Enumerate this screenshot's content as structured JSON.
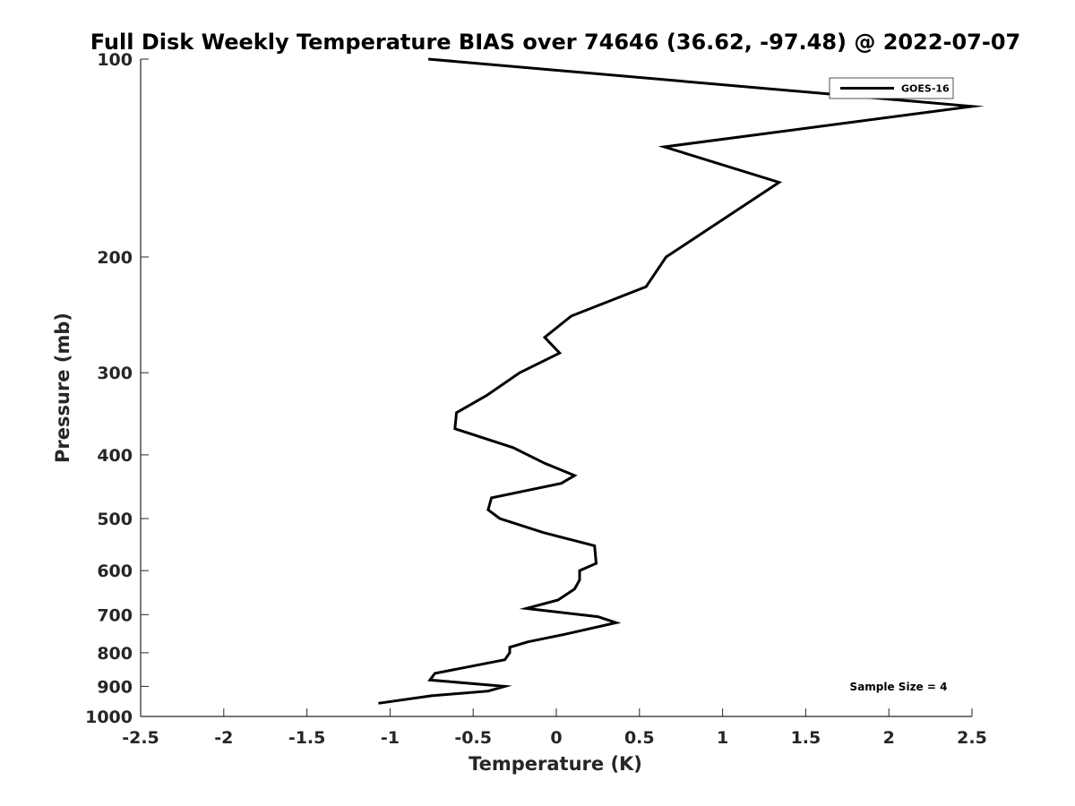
{
  "chart_data": {
    "type": "line",
    "title": "Full Disk Weekly Temperature BIAS over 74646 (36.62, -97.48) @ 2022-07-07",
    "xlabel": "Temperature (K)",
    "ylabel": "Pressure (mb)",
    "xlim": [
      -2.5,
      2.5
    ],
    "ylim": [
      1000,
      100
    ],
    "yscale": "log",
    "x_ticks": [
      -2.5,
      -2,
      -1.5,
      -1,
      -0.5,
      0,
      0.5,
      1,
      1.5,
      2,
      2.5
    ],
    "x_tick_labels": [
      "-2.5",
      "-2",
      "-1.5",
      "-1",
      "-0.5",
      "0",
      "0.5",
      "1",
      "1.5",
      "2",
      "2.5"
    ],
    "y_ticks": [
      100,
      200,
      300,
      400,
      500,
      600,
      700,
      800,
      900,
      1000
    ],
    "y_tick_labels": [
      "100",
      "200",
      "300",
      "400",
      "500",
      "600",
      "700",
      "800",
      "900",
      "1000"
    ],
    "grid": false,
    "legend": {
      "position": "top-right",
      "entries": [
        "GOES-16"
      ]
    },
    "annotation": "Sample Size = 4",
    "series": [
      {
        "name": "GOES-16",
        "color": "#000000",
        "points": [
          {
            "x": -0.77,
            "y": 100
          },
          {
            "x": 2.5,
            "y": 118
          },
          {
            "x": 0.65,
            "y": 136
          },
          {
            "x": 1.34,
            "y": 154
          },
          {
            "x": 0.66,
            "y": 200
          },
          {
            "x": 0.54,
            "y": 222
          },
          {
            "x": 0.09,
            "y": 246
          },
          {
            "x": -0.07,
            "y": 265
          },
          {
            "x": 0.02,
            "y": 280
          },
          {
            "x": -0.22,
            "y": 300
          },
          {
            "x": -0.42,
            "y": 325
          },
          {
            "x": -0.6,
            "y": 345
          },
          {
            "x": -0.61,
            "y": 365
          },
          {
            "x": -0.26,
            "y": 390
          },
          {
            "x": -0.07,
            "y": 412
          },
          {
            "x": 0.11,
            "y": 430
          },
          {
            "x": 0.03,
            "y": 442
          },
          {
            "x": -0.39,
            "y": 465
          },
          {
            "x": -0.41,
            "y": 485
          },
          {
            "x": -0.34,
            "y": 500
          },
          {
            "x": -0.08,
            "y": 525
          },
          {
            "x": 0.23,
            "y": 550
          },
          {
            "x": 0.24,
            "y": 585
          },
          {
            "x": 0.14,
            "y": 600
          },
          {
            "x": 0.14,
            "y": 620
          },
          {
            "x": 0.11,
            "y": 640
          },
          {
            "x": 0.01,
            "y": 665
          },
          {
            "x": -0.18,
            "y": 685
          },
          {
            "x": 0.25,
            "y": 705
          },
          {
            "x": 0.36,
            "y": 720
          },
          {
            "x": 0.05,
            "y": 750
          },
          {
            "x": -0.17,
            "y": 770
          },
          {
            "x": -0.28,
            "y": 785
          },
          {
            "x": -0.28,
            "y": 800
          },
          {
            "x": -0.31,
            "y": 820
          },
          {
            "x": -0.73,
            "y": 860
          },
          {
            "x": -0.76,
            "y": 880
          },
          {
            "x": -0.31,
            "y": 900
          },
          {
            "x": -0.41,
            "y": 915
          },
          {
            "x": -0.75,
            "y": 930
          },
          {
            "x": -1.07,
            "y": 955
          }
        ]
      }
    ]
  }
}
